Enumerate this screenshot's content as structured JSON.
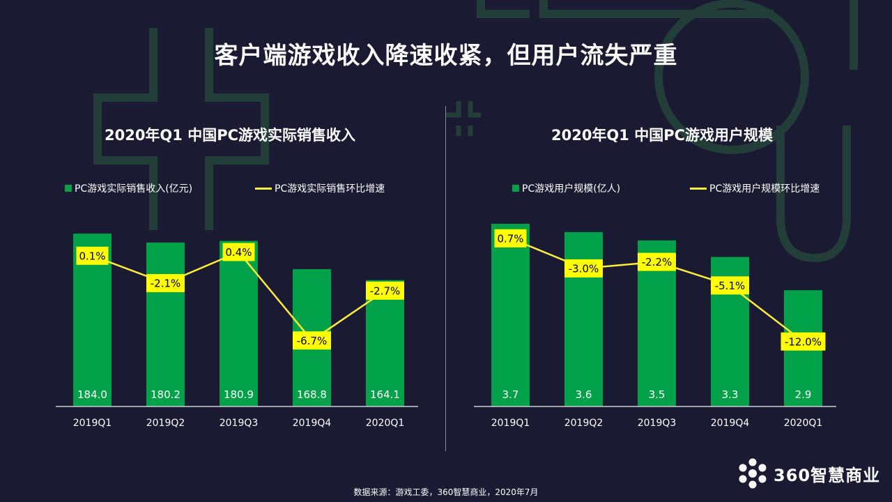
{
  "page": {
    "title": "客户端游戏收入降速收紧，但用户流失严重",
    "source": "数据来源：游戏工委，360智慧商业，2020年7月",
    "logo_text": "360智慧商业"
  },
  "colors": {
    "background": "#1b1a33",
    "bar": "#00a148",
    "line": "#ffee3a",
    "label_bg": "#ffff00"
  },
  "chart_data": [
    {
      "type": "bar",
      "title": "2020年Q1 中国PC游戏实际销售收入",
      "categories": [
        "2019Q1",
        "2019Q2",
        "2019Q3",
        "2019Q4",
        "2020Q1"
      ],
      "series": [
        {
          "name": "PC游戏实际销售收入(亿元)",
          "type": "bar",
          "values": [
            184.0,
            180.2,
            180.9,
            168.8,
            164.1
          ],
          "labels": [
            "184.0",
            "180.2",
            "180.9",
            "168.8",
            "164.1"
          ]
        },
        {
          "name": "PC游戏实际销售环比增速",
          "type": "line",
          "values": [
            0.1,
            -2.1,
            0.4,
            -6.7,
            -2.7
          ],
          "labels": [
            "0.1%",
            "-2.1%",
            "0.4%",
            "-6.7%",
            "-2.7%"
          ]
        }
      ],
      "bar_axis_range": [
        110,
        190
      ],
      "line_axis_range": [
        -12,
        3
      ],
      "legend_position": "top"
    },
    {
      "type": "bar",
      "title": "2020年Q1 中国PC游戏用户规模",
      "categories": [
        "2019Q1",
        "2019Q2",
        "2019Q3",
        "2019Q4",
        "2020Q1"
      ],
      "series": [
        {
          "name": "PC游戏用户规模(亿人)",
          "type": "bar",
          "values": [
            3.7,
            3.6,
            3.5,
            3.3,
            2.9
          ],
          "labels": [
            "3.7",
            "3.6",
            "3.5",
            "3.3",
            "2.9"
          ]
        },
        {
          "name": "PC游戏用户规模环比增速",
          "type": "line",
          "values": [
            0.7,
            -3.0,
            -2.2,
            -5.1,
            -12.0
          ],
          "labels": [
            "0.7%",
            "-3.0%",
            "-2.2%",
            "-5.1%",
            "-12.0%"
          ]
        }
      ],
      "bar_axis_range": [
        1.5,
        3.75
      ],
      "line_axis_range": [
        -20,
        3
      ],
      "legend_position": "top"
    }
  ]
}
